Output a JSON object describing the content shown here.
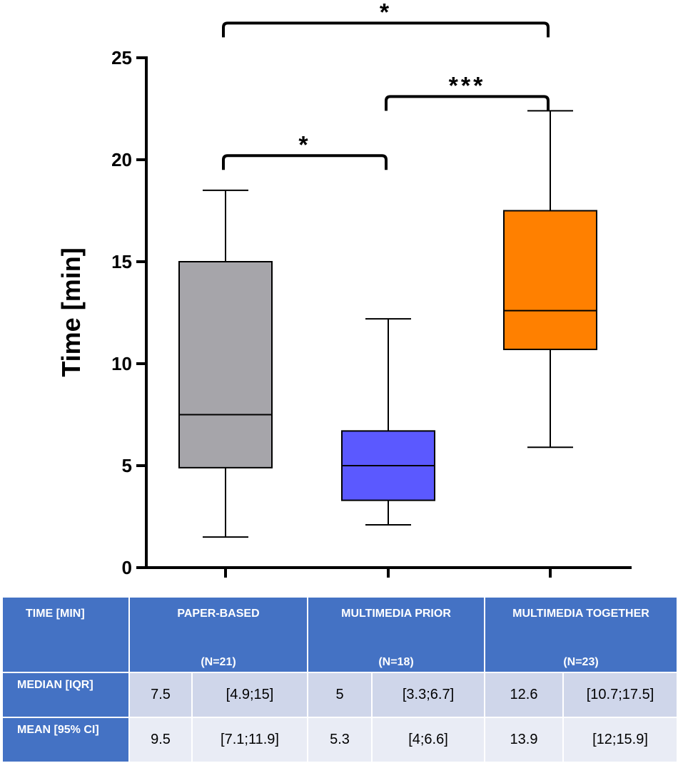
{
  "chart_data": {
    "type": "box",
    "ylabel": "Time [min]",
    "xlabel": "",
    "ylim": [
      0,
      25
    ],
    "yticks": [
      0,
      5,
      10,
      15,
      20,
      25
    ],
    "grid": false,
    "groups": [
      {
        "name": "PAPER-BASED",
        "min": 1.5,
        "q1": 4.9,
        "median": 7.5,
        "q3": 15,
        "max": 18.5,
        "color": "#a6a5aa"
      },
      {
        "name": "MULTIMEDIA PRIOR",
        "min": 2.1,
        "q1": 3.3,
        "median": 5,
        "q3": 6.7,
        "max": 12.2,
        "color": "#5b59ff"
      },
      {
        "name": "MULTIMEDIA TOGETHER",
        "min": 5.9,
        "q1": 10.7,
        "median": 12.6,
        "q3": 17.5,
        "max": 22.4,
        "color": "#ff8000"
      }
    ],
    "significance": [
      {
        "from": 0,
        "to": 1,
        "y": 20.2,
        "label": "*"
      },
      {
        "from": 1,
        "to": 2,
        "y": 23.1,
        "label": "***"
      },
      {
        "from": 0,
        "to": 2,
        "y": 26.7,
        "label": "*"
      }
    ]
  },
  "table": {
    "header": {
      "label": "TIME [MIN]",
      "cols": [
        {
          "title": "PAPER-BASED",
          "n": "(N=21)"
        },
        {
          "title": "MULTIMEDIA PRIOR",
          "n": "(N=18)"
        },
        {
          "title": "MULTIMEDIA TOGETHER",
          "n": "(N=23)"
        }
      ]
    },
    "rows": [
      {
        "label": "MEDIAN [IQR]",
        "values": [
          "7.5",
          "[4.9;15]",
          "5",
          "[3.3;6.7]",
          "12.6",
          "[10.7;17.5]"
        ]
      },
      {
        "label": "MEAN [95% CI]",
        "values": [
          "9.5",
          "[7.1;11.9]",
          "5.3",
          "[4;6.6]",
          "13.9",
          "[12;15.9]"
        ]
      }
    ]
  }
}
